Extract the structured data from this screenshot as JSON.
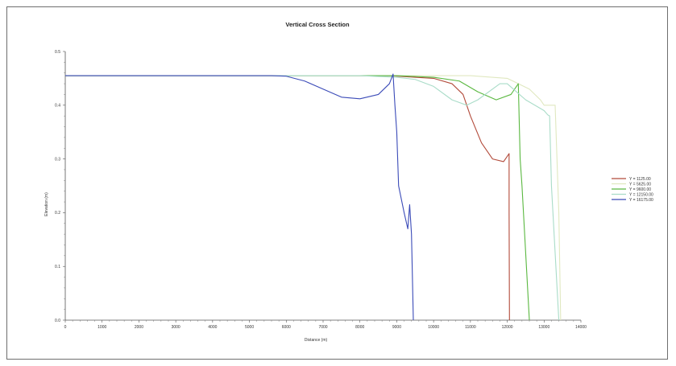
{
  "chart_data": {
    "type": "line",
    "title": "Vertical Cross Section",
    "xlabel": "Distance (m)",
    "ylabel": "Elevation (m)",
    "xlim": [
      0,
      14000
    ],
    "ylim": [
      0,
      0.5
    ],
    "x_ticks": [
      "0",
      "1000",
      "2000",
      "3000",
      "4000",
      "5000",
      "6000",
      "7000",
      "8000",
      "9000",
      "10000",
      "11000",
      "12000",
      "13000",
      "14000"
    ],
    "y_ticks": [
      "0.0",
      "0.1",
      "0.2",
      "0.3",
      "0.4",
      "0.5"
    ],
    "grid": false,
    "legend_position": "right",
    "series": [
      {
        "name": "Y = 1125.00",
        "color": "#b24a3a",
        "points": [
          [
            0,
            0.455
          ],
          [
            6000,
            0.455
          ],
          [
            8800,
            0.455
          ],
          [
            9500,
            0.452
          ],
          [
            10000,
            0.45
          ],
          [
            10500,
            0.44
          ],
          [
            10800,
            0.42
          ],
          [
            11000,
            0.38
          ],
          [
            11300,
            0.33
          ],
          [
            11600,
            0.3
          ],
          [
            11900,
            0.295
          ],
          [
            12000,
            0.305
          ],
          [
            12050,
            0.31
          ],
          [
            12050,
            0.2
          ],
          [
            12060,
            0.0
          ]
        ]
      },
      {
        "name": "Y = 5625.00",
        "color": "#e0e8c0",
        "points": [
          [
            0,
            0.455
          ],
          [
            11000,
            0.455
          ],
          [
            12000,
            0.45
          ],
          [
            12600,
            0.43
          ],
          [
            12900,
            0.41
          ],
          [
            13000,
            0.4
          ],
          [
            13300,
            0.4
          ],
          [
            13400,
            0.2
          ],
          [
            13450,
            0.0
          ]
        ]
      },
      {
        "name": "Y = 9600.00",
        "color": "#5ab840",
        "points": [
          [
            0,
            0.455
          ],
          [
            9000,
            0.455
          ],
          [
            10000,
            0.452
          ],
          [
            10700,
            0.445
          ],
          [
            11200,
            0.425
          ],
          [
            11700,
            0.41
          ],
          [
            12100,
            0.42
          ],
          [
            12300,
            0.44
          ],
          [
            12350,
            0.3
          ],
          [
            12400,
            0.25
          ],
          [
            12600,
            0.0
          ]
        ]
      },
      {
        "name": "Y = 12150.00",
        "color": "#a9dcc8",
        "points": [
          [
            0,
            0.455
          ],
          [
            6000,
            0.455
          ],
          [
            8000,
            0.455
          ],
          [
            9000,
            0.452
          ],
          [
            9500,
            0.448
          ],
          [
            10000,
            0.435
          ],
          [
            10500,
            0.41
          ],
          [
            10900,
            0.4
          ],
          [
            11200,
            0.41
          ],
          [
            11800,
            0.44
          ],
          [
            12000,
            0.44
          ],
          [
            12500,
            0.41
          ],
          [
            13000,
            0.39
          ],
          [
            13100,
            0.382
          ],
          [
            13150,
            0.38
          ],
          [
            13200,
            0.25
          ],
          [
            13400,
            0.0
          ]
        ]
      },
      {
        "name": "Y = 16175.00",
        "color": "#3b4bb8",
        "points": [
          [
            0,
            0.455
          ],
          [
            5600,
            0.455
          ],
          [
            6000,
            0.454
          ],
          [
            6500,
            0.445
          ],
          [
            7000,
            0.43
          ],
          [
            7500,
            0.415
          ],
          [
            8000,
            0.412
          ],
          [
            8500,
            0.42
          ],
          [
            8800,
            0.44
          ],
          [
            8900,
            0.458
          ],
          [
            8950,
            0.4
          ],
          [
            9000,
            0.35
          ],
          [
            9050,
            0.25
          ],
          [
            9200,
            0.2
          ],
          [
            9300,
            0.17
          ],
          [
            9350,
            0.215
          ],
          [
            9400,
            0.16
          ],
          [
            9450,
            0.0
          ]
        ]
      }
    ]
  }
}
